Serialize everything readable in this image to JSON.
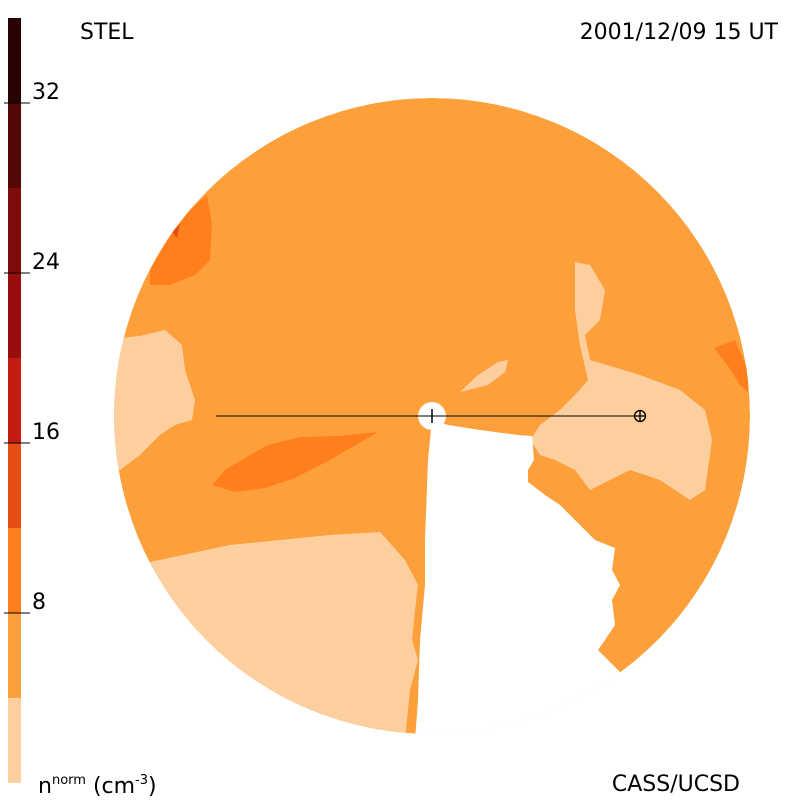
{
  "header": {
    "left_title": "STEL",
    "right_title": "2001/12/09 15 UT"
  },
  "footer": {
    "units_base": "n",
    "units_sup": "norm",
    "units_rest": "(cm",
    "units_exp": "-3",
    "units_close": ")",
    "credit": "CASS/UCSD"
  },
  "colorbar": {
    "tick_labels": [
      "32",
      "24",
      "16",
      "8"
    ],
    "tick_values": [
      32,
      24,
      16,
      8
    ],
    "range": [
      0,
      36
    ],
    "bands": [
      {
        "from": 32,
        "to": 36,
        "color": "#2a0404"
      },
      {
        "from": 28,
        "to": 32,
        "color": "#560808"
      },
      {
        "from": 24,
        "to": 28,
        "color": "#7e0c0c"
      },
      {
        "from": 20,
        "to": 24,
        "color": "#9a0d0d"
      },
      {
        "from": 16,
        "to": 20,
        "color": "#c41b10"
      },
      {
        "from": 12,
        "to": 16,
        "color": "#e64f12"
      },
      {
        "from": 8,
        "to": 12,
        "color": "#ff7f1d"
      },
      {
        "from": 4,
        "to": 8,
        "color": "#fda03c"
      },
      {
        "from": 0,
        "to": 4,
        "color": "#fdcf9e"
      }
    ]
  },
  "colors": {
    "base": "#fda03c",
    "low": "#fdcf9e",
    "mid": "#ff7f1d",
    "high": "#e64f12"
  }
}
